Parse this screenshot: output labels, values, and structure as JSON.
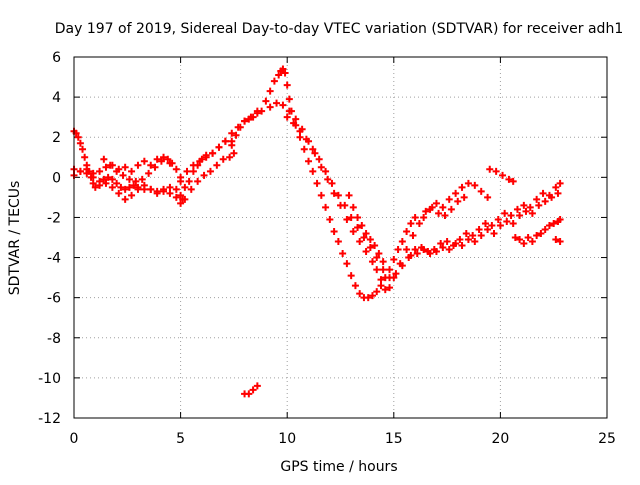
{
  "chart_data": {
    "type": "scatter",
    "title": "Day 197 of 2019, Sidereal Day-to-day VTEC variation (SDTVAR) for receiver adh1",
    "xlabel": "GPS time / hours",
    "ylabel": "SDTVAR / TECUs",
    "xlim": [
      0,
      25
    ],
    "ylim": [
      -12,
      6
    ],
    "xticks": [
      0,
      5,
      10,
      15,
      20,
      25
    ],
    "yticks": [
      -12,
      -10,
      -8,
      -6,
      -4,
      -2,
      0,
      2,
      4,
      6
    ],
    "grid": true,
    "marker": "+",
    "color": "#ff0000",
    "series": [
      {
        "x": [
          0.0,
          0.1,
          0.2,
          0.3,
          0.4,
          0.5,
          0.6,
          0.7,
          0.8,
          0.9,
          1.0,
          1.2,
          1.4,
          1.6,
          1.8,
          2.0,
          2.2,
          2.4,
          2.6,
          2.8,
          3.0,
          3.3,
          3.6,
          3.9,
          4.2,
          4.5,
          4.8,
          5.0,
          5.1
        ],
        "y": [
          2.3,
          2.2,
          2.0,
          1.7,
          1.4,
          1.0,
          0.6,
          0.3,
          0.0,
          -0.3,
          -0.5,
          -0.4,
          -0.1,
          0.0,
          -0.1,
          -0.3,
          -0.5,
          -0.6,
          -0.5,
          -0.4,
          -0.5,
          -0.6,
          -0.6,
          -0.7,
          -0.6,
          -0.5,
          -0.6,
          -0.9,
          -1.1
        ]
      },
      {
        "x": [
          0.0,
          0.3,
          0.6,
          0.9,
          1.2,
          1.5,
          1.8,
          2.1,
          2.4,
          2.7,
          3.0,
          3.3,
          3.6,
          3.9,
          4.2,
          4.5,
          4.8,
          5.0,
          5.2,
          5.5,
          5.8,
          6.1,
          6.4,
          6.7,
          7.0,
          7.3,
          7.5
        ],
        "y": [
          0.4,
          0.3,
          0.2,
          0.0,
          -0.2,
          -0.3,
          -0.5,
          -0.8,
          -1.1,
          -0.9,
          -0.6,
          -0.4,
          -0.6,
          -0.8,
          -0.7,
          -0.8,
          -1.0,
          -1.3,
          -1.1,
          -0.6,
          -0.2,
          0.1,
          0.3,
          0.6,
          0.9,
          1.0,
          1.2
        ]
      },
      {
        "x": [
          0.0,
          0.3,
          0.6,
          0.9,
          1.2,
          1.5,
          1.8,
          2.1,
          2.4,
          2.7,
          3.0,
          3.3,
          3.6,
          3.9,
          4.2,
          4.5,
          4.8,
          5.0,
          5.2,
          5.4,
          5.6,
          5.8,
          6.0,
          6.2,
          6.5,
          6.8,
          7.1,
          7.4
        ],
        "y": [
          0.1,
          0.3,
          0.4,
          0.2,
          0.3,
          0.5,
          0.6,
          0.4,
          0.5,
          0.3,
          0.6,
          0.8,
          0.6,
          0.9,
          1.0,
          0.7,
          0.4,
          -0.2,
          -0.5,
          -0.2,
          0.3,
          0.6,
          0.9,
          1.1,
          1.2,
          1.5,
          1.8,
          1.6
        ]
      },
      {
        "x": [
          1.4,
          1.7,
          2.0,
          2.3,
          2.6,
          2.9,
          3.2,
          3.5,
          3.8,
          4.1,
          4.4,
          4.6
        ],
        "y": [
          0.9,
          0.6,
          0.3,
          0.1,
          -0.1,
          -0.2,
          -0.1,
          0.2,
          0.5,
          0.8,
          0.9,
          0.7
        ]
      },
      {
        "x": [
          5.0,
          5.3,
          5.6,
          5.9,
          6.2,
          6.5,
          6.8,
          7.1,
          7.4,
          7.7,
          8.0,
          8.3,
          8.6
        ],
        "y": [
          0.0,
          0.3,
          0.6,
          0.8,
          1.0,
          1.2,
          1.5,
          1.8,
          2.2,
          2.5,
          2.8,
          3.0,
          3.2
        ]
      },
      {
        "x": [
          7.4,
          7.6,
          7.8,
          8.0,
          8.2,
          8.4,
          8.6
        ],
        "y": [
          1.8,
          2.1,
          2.5,
          2.8,
          2.9,
          3.0,
          3.3
        ]
      },
      {
        "x": [
          8.8,
          9.0,
          9.2,
          9.4,
          9.6,
          9.7,
          9.8,
          9.9,
          10.0,
          10.1,
          10.2,
          10.4,
          10.6,
          10.8,
          11.0,
          11.2,
          11.4,
          11.6,
          11.8,
          12.0,
          12.2,
          12.4,
          12.6,
          12.8,
          13.0,
          13.2,
          13.4,
          13.6,
          13.8,
          14.0,
          14.2,
          14.4,
          14.6,
          14.8,
          15.0,
          15.2,
          15.4,
          15.6,
          15.8,
          16.0
        ],
        "y": [
          3.3,
          3.8,
          4.3,
          4.8,
          5.1,
          5.3,
          5.4,
          5.2,
          4.6,
          3.9,
          3.3,
          2.6,
          2.0,
          1.4,
          0.8,
          0.3,
          -0.3,
          -0.9,
          -1.5,
          -2.1,
          -2.7,
          -3.2,
          -3.8,
          -4.3,
          -4.9,
          -5.4,
          -5.8,
          -6.0,
          -6.0,
          -5.9,
          -5.7,
          -5.4,
          -5.0,
          -4.6,
          -4.1,
          -3.6,
          -3.2,
          -2.7,
          -2.3,
          -2.0
        ]
      },
      {
        "x": [
          9.2,
          9.5,
          9.8,
          10.1,
          10.4,
          10.7,
          11.0,
          11.3,
          11.6,
          11.9,
          12.2,
          12.5,
          12.8,
          13.1,
          13.4,
          13.7,
          14.0,
          14.2,
          14.4,
          14.6,
          14.8,
          15.0,
          15.3,
          15.6,
          15.9,
          16.2,
          16.5,
          16.8,
          17.1,
          17.4,
          17.7,
          18.0,
          18.3
        ],
        "y": [
          3.5,
          3.7,
          3.6,
          3.3,
          2.9,
          2.4,
          1.8,
          1.2,
          0.5,
          -0.1,
          -0.8,
          -1.4,
          -2.1,
          -2.7,
          -3.2,
          -3.7,
          -4.2,
          -4.6,
          -5.1,
          -5.6,
          -5.5,
          -5.0,
          -4.3,
          -3.6,
          -2.9,
          -2.3,
          -1.7,
          -1.5,
          -1.8,
          -1.9,
          -1.6,
          -1.2,
          -1.0
        ]
      },
      {
        "x": [
          10.0,
          10.3,
          10.6,
          10.9,
          11.2,
          11.5,
          11.8,
          12.1,
          12.4,
          12.7,
          13.0,
          13.3,
          13.6,
          13.9,
          14.2,
          14.5,
          14.8,
          15.1,
          15.4,
          15.7,
          16.0,
          16.3,
          16.6,
          16.9,
          17.2,
          17.5,
          17.8,
          18.1,
          18.4,
          18.7,
          19.0,
          19.3,
          19.6,
          19.9,
          20.2,
          20.5,
          20.8,
          21.1,
          21.4,
          21.7,
          22.0,
          22.3,
          22.6,
          22.8
        ],
        "y": [
          3.0,
          2.7,
          2.3,
          1.9,
          1.4,
          0.9,
          0.3,
          -0.3,
          -0.9,
          -1.4,
          -2.0,
          -2.5,
          -3.0,
          -3.5,
          -4.0,
          -4.6,
          -5.0,
          -4.8,
          -4.4,
          -4.0,
          -3.6,
          -3.5,
          -3.7,
          -3.6,
          -3.3,
          -3.2,
          -3.4,
          -3.1,
          -2.8,
          -2.9,
          -2.6,
          -2.3,
          -2.4,
          -2.1,
          -1.8,
          -1.9,
          -1.6,
          -1.4,
          -1.5,
          -1.1,
          -0.8,
          -0.9,
          -0.5,
          -0.3
        ]
      },
      {
        "x": [
          12.9,
          13.1,
          13.3,
          13.5,
          13.7,
          13.9,
          14.1,
          14.3,
          14.5
        ],
        "y": [
          -0.9,
          -1.5,
          -2.0,
          -2.4,
          -2.8,
          -3.1,
          -3.4,
          -3.8,
          -4.2
        ]
      },
      {
        "x": [
          15.8,
          16.1,
          16.4,
          16.7,
          17.0,
          17.3,
          17.6,
          17.9,
          18.2,
          18.5,
          18.8,
          19.1,
          19.4,
          19.7,
          20.0,
          20.3,
          20.6,
          20.9,
          21.2,
          21.5,
          21.8,
          22.1,
          22.4,
          22.7
        ],
        "y": [
          -3.9,
          -3.8,
          -3.6,
          -3.8,
          -3.7,
          -3.5,
          -3.6,
          -3.3,
          -3.4,
          -3.1,
          -3.2,
          -2.9,
          -2.6,
          -2.8,
          -2.4,
          -2.2,
          -2.3,
          -1.9,
          -1.7,
          -1.8,
          -1.4,
          -1.2,
          -1.0,
          -0.8
        ]
      },
      {
        "x": [
          16.4,
          16.7,
          17.0,
          17.3,
          17.6,
          17.9,
          18.2,
          18.5,
          18.8,
          19.1,
          19.4
        ],
        "y": [
          -2.0,
          -1.6,
          -1.3,
          -1.5,
          -1.1,
          -0.8,
          -0.5,
          -0.3,
          -0.4,
          -0.7,
          -1.0
        ]
      },
      {
        "x": [
          19.5,
          19.8,
          20.1,
          20.4,
          20.6
        ],
        "y": [
          0.4,
          0.3,
          0.1,
          -0.1,
          -0.2
        ]
      },
      {
        "x": [
          20.7,
          20.9,
          21.1,
          21.3,
          21.5,
          21.7,
          21.9,
          22.1,
          22.3,
          22.5,
          22.7,
          22.8
        ],
        "y": [
          -3.0,
          -3.1,
          -3.3,
          -3.0,
          -3.2,
          -2.9,
          -2.8,
          -2.6,
          -2.4,
          -2.3,
          -2.2,
          -2.1
        ]
      },
      {
        "x": [
          22.6,
          22.8
        ],
        "y": [
          -3.1,
          -3.2
        ]
      },
      {
        "x": [
          8.0,
          8.2,
          8.4,
          8.6
        ],
        "y": [
          -10.8,
          -10.8,
          -10.6,
          -10.4
        ]
      }
    ]
  }
}
